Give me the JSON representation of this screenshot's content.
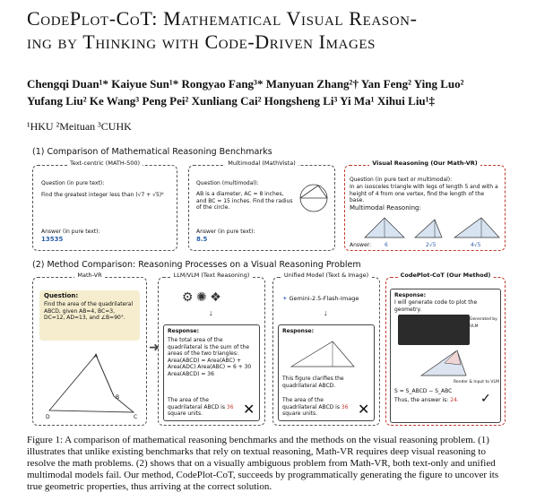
{
  "title_line1": "CodePlot-CoT: Mathematical Visual Reason-",
  "title_line2": "ing by Thinking with Code-Driven Images",
  "authors_line1": "Chengqi Duan¹* Kaiyue Sun¹* Rongyao Fang³* Manyuan Zhang²† Yan Feng² Ying Luo²",
  "authors_line2": "Yufang Liu² Ke Wang³ Peng Pei² Xunliang Cai² Hongsheng Li³ Yi Ma¹ Xihui Liu¹‡",
  "affiliations": "¹HKU   ²Meituan   ³CUHK",
  "section1": "(1) Comparison of Mathematical Reasoning Benchmarks",
  "bench": [
    {
      "head": "Text-centric (MATH-500)",
      "q": "Question (in pure text):",
      "body": "Find the greatest integer less than (√7 + √5)⁶",
      "ans_label": "Answer (in pure text):",
      "ans": "13535"
    },
    {
      "head": "Multimodal (MathVista)",
      "q": "Question (multimodal):",
      "body": "AB is a diameter, AC = 8 inches, and BC = 15 inches. Find the radius of the circle.",
      "ans_label": "Answer (in pure text):",
      "ans": "8.5"
    },
    {
      "head": "Visual Reasoning (Our Math-VR)",
      "q": "Question (in pure text or multimodal):",
      "body": "In an isosceles triangle with legs of length 5 and with a height of 4 from one vertex, find the length of the base.",
      "mm": "Multimodal Reasoning:",
      "ans_label": "Answer:",
      "answers": [
        "6",
        "2√5",
        "4√5"
      ]
    }
  ],
  "section2": "(2) Method Comparison: Reasoning Processes on a Visual Reasoning Problem",
  "mathvr": {
    "head": "Math-VR",
    "q": "Question:",
    "body": "Find the area of the quadrilateral ABCD, given AB=4, BC=3, DC=12, AD=13, and ∠B=90°.",
    "labels": [
      "A",
      "B",
      "C",
      "D"
    ]
  },
  "llm": {
    "head": "LLM/VLM (Text Reasoning)",
    "resp": "Response:",
    "body": "The total area of the quadrilateral is the sum of the areas of the two triangles: Area(ABCD) = Area(ABC) + Area(ADC) Area(ABC) = 6 + 30 Area(ABCD) = 36",
    "final_a": "The area of the quadrilateral ABCD is ",
    "final_v": "36",
    "final_b": " square units."
  },
  "unified": {
    "head": "Unified Model (Text & Image)",
    "model": "Gemini-2.5-Flash-Image",
    "resp": "Response:",
    "body": "This figure clarifies the quadrilateral ABCD.",
    "final_a": "The area of the quadrilateral ABCD is ",
    "final_v": "36",
    "final_b": " square units."
  },
  "codeplot": {
    "head": "CodePlot-CoT (Our Method)",
    "resp": "Response:",
    "body": "I will generate code to plot the geometry.",
    "gen": "Generated by VLM",
    "render": "Render & Input to VLM",
    "formula": "S = S_ABCD − S_ABC",
    "final_a": "Thus, the answer is: ",
    "final_v": "24."
  },
  "caption": "Figure 1: A comparison of mathematical reasoning benchmarks and the methods on the visual reasoning problem. (1) illustrates that unlike existing benchmarks that rely on textual reasoning, Math-VR requires deep visual reasoning to resolve the math problems. (2) shows that on a visually ambiguous problem from Math-VR, both text-only and unified multimodal models fail. Our method, CodePlot-CoT, succeeds by programmatically generating the figure to uncover its true geometric properties, thus arriving at the correct solution."
}
